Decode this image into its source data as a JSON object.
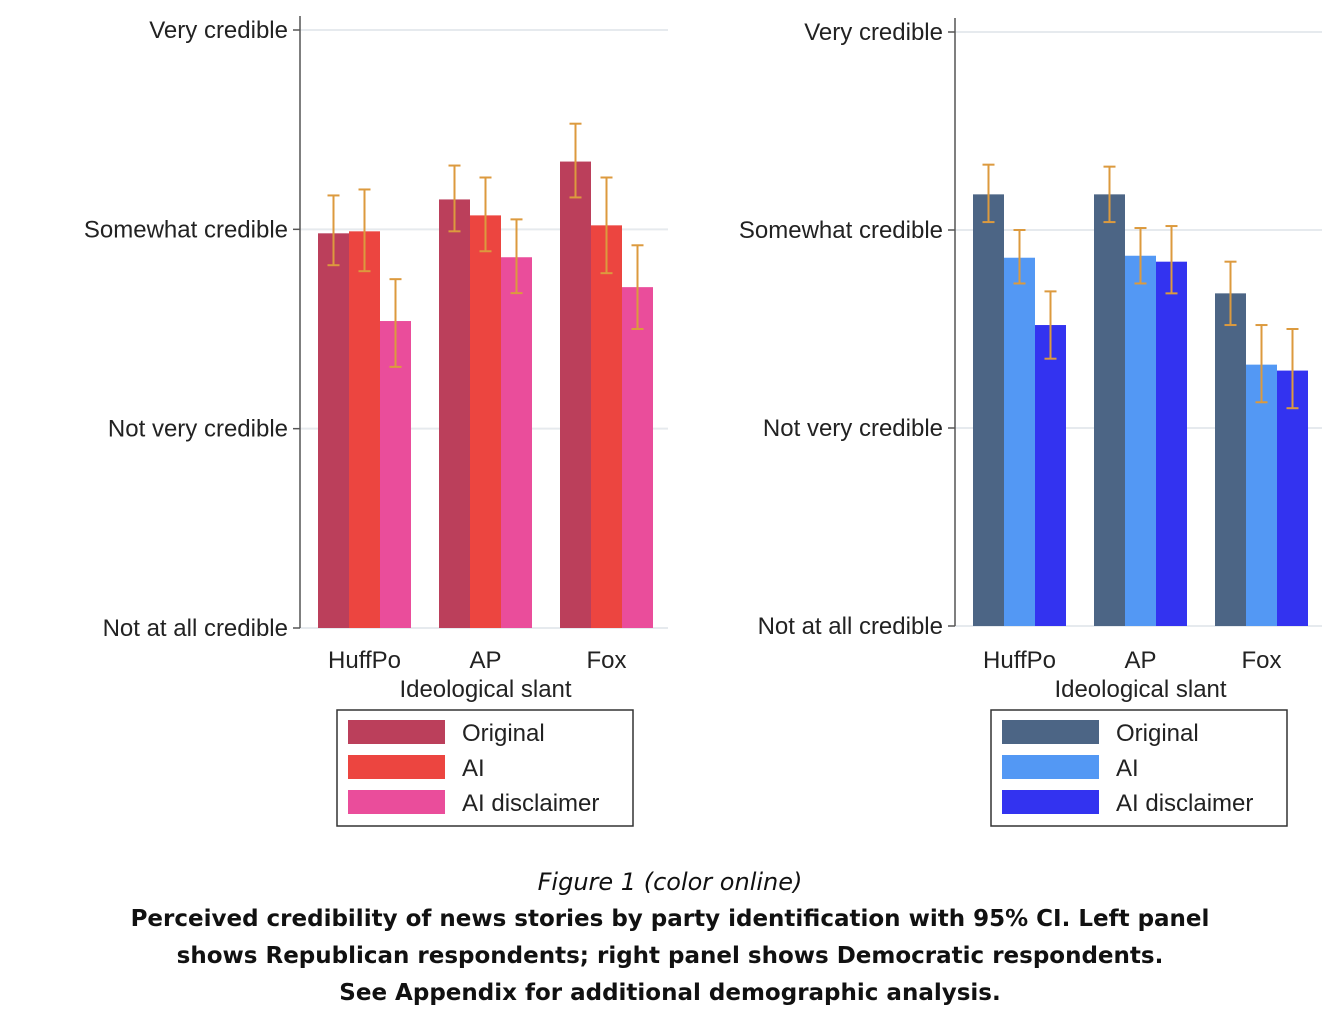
{
  "figure": {
    "label": "Figure 1 (color online)",
    "caption_lines": [
      "Perceived credibility of news stories by party identification with 95% CI. Left panel",
      "shows Republican respondents; right panel shows Democratic respondents.",
      "See Appendix for additional demographic analysis."
    ]
  },
  "chart_data": [
    {
      "type": "bar",
      "xlabel": "Ideological slant",
      "ylabel": "",
      "ylim": [
        1,
        4
      ],
      "y_ticks": [
        {
          "value": 1,
          "label": "Not at all credible"
        },
        {
          "value": 2,
          "label": "Not very credible"
        },
        {
          "value": 3,
          "label": "Somewhat credible"
        },
        {
          "value": 4,
          "label": "Very credible"
        }
      ],
      "grid": true,
      "legend_position": "bottom",
      "categories": [
        "HuffPo",
        "AP",
        "Fox"
      ],
      "series": [
        {
          "name": "Original",
          "color": "#bb3f5b",
          "values": [
            2.98,
            3.15,
            3.34
          ],
          "ci_low": [
            2.82,
            2.99,
            3.16
          ],
          "ci_high": [
            3.17,
            3.32,
            3.53
          ]
        },
        {
          "name": "AI",
          "color": "#ec4540",
          "values": [
            2.99,
            3.07,
            3.02
          ],
          "ci_low": [
            2.79,
            2.89,
            2.78
          ],
          "ci_high": [
            3.2,
            3.26,
            3.26
          ]
        },
        {
          "name": "AI disclaimer",
          "color": "#ea4d9b",
          "values": [
            2.54,
            2.86,
            2.71
          ],
          "ci_low": [
            2.31,
            2.68,
            2.5
          ],
          "ci_high": [
            2.75,
            3.05,
            2.92
          ]
        }
      ]
    },
    {
      "type": "bar",
      "xlabel": "Ideological slant",
      "ylabel": "",
      "ylim": [
        1,
        4
      ],
      "y_ticks": [
        {
          "value": 1,
          "label": "Not at all credible"
        },
        {
          "value": 2,
          "label": "Not very credible"
        },
        {
          "value": 3,
          "label": "Somewhat credible"
        },
        {
          "value": 4,
          "label": "Very credible"
        }
      ],
      "grid": true,
      "legend_position": "bottom",
      "categories": [
        "HuffPo",
        "AP",
        "Fox"
      ],
      "series": [
        {
          "name": "Original",
          "color": "#4c6585",
          "values": [
            3.18,
            3.18,
            2.68
          ],
          "ci_low": [
            3.04,
            3.04,
            2.52
          ],
          "ci_high": [
            3.33,
            3.32,
            2.84
          ]
        },
        {
          "name": "AI",
          "color": "#5398f4",
          "values": [
            2.86,
            2.87,
            2.32
          ],
          "ci_low": [
            2.73,
            2.73,
            2.13
          ],
          "ci_high": [
            3.0,
            3.01,
            2.52
          ]
        },
        {
          "name": "AI disclaimer",
          "color": "#3333f0",
          "values": [
            2.52,
            2.84,
            2.29
          ],
          "ci_low": [
            2.35,
            2.68,
            2.1
          ],
          "ci_high": [
            2.69,
            3.02,
            2.5
          ]
        }
      ]
    }
  ],
  "colors": {
    "errorbar": "#dc9a3e",
    "axis": "#555555",
    "grid": "#e6eaee"
  }
}
